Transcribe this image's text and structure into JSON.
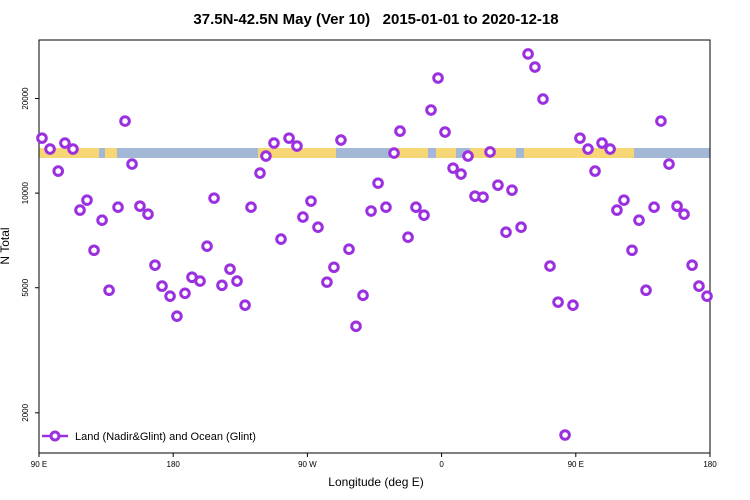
{
  "chart_data": {
    "type": "scatter",
    "title": "37.5N-42.5N May (Ver 10)   2015-01-01 to 2020-12-18",
    "x_label": "Longitude (deg E)",
    "y_label": "N Total",
    "log_y": true,
    "legend_position": "lower left",
    "xlim": [
      90,
      540
    ],
    "xticks": [
      {
        "value": 90,
        "label": "90 E"
      },
      {
        "value": 180,
        "label": "180"
      },
      {
        "value": 270,
        "label": "90 W"
      },
      {
        "value": 360,
        "label": "0"
      },
      {
        "value": 450,
        "label": "90 E"
      },
      {
        "value": 540,
        "label": "180"
      }
    ],
    "ylim": [
      1490,
      30700
    ],
    "yticks": [
      2000,
      5000,
      10000,
      20000
    ],
    "series": [
      {
        "name": "Land (Nadir&Glint) and Ocean (Glint)",
        "color": "#9b30e0",
        "x": [
          92,
          97.4,
          102.9,
          107.4,
          112.8,
          117.5,
          122.2,
          126.9,
          132.3,
          137,
          143,
          147.7,
          152.4,
          157.7,
          163.1,
          167.8,
          172.5,
          177.9,
          182.5,
          187.9,
          192.6,
          198,
          202.7,
          207.4,
          212.7,
          218.1,
          222.8,
          228.2,
          232.2,
          238.2,
          242.2,
          247.6,
          252.3,
          257.7,
          263,
          267,
          272.4,
          277.1,
          283.1,
          287.8,
          292.5,
          297.9,
          302.6,
          307.3,
          312.7,
          317.4,
          322.7,
          328.1,
          332.1,
          337.5,
          342.8,
          348.2,
          352.9,
          357.6,
          362.3,
          367.7,
          373,
          377.7,
          382.4,
          387.8,
          392.5,
          397.8,
          403.2,
          407.2,
          413.3,
          418,
          422.6,
          428,
          432.7,
          438.1,
          442.8,
          448.1,
          452.8,
          458.2,
          462.9,
          467.6,
          473,
          477.6,
          482.3,
          487.7,
          492.4,
          497.1,
          502.5,
          507.1,
          512.5,
          517.9,
          522.6,
          528,
          532.6,
          538
        ],
        "values": [
          14960,
          13810,
          11750,
          14430,
          13810,
          8830,
          9500,
          6580,
          8200,
          4910,
          9020,
          16950,
          12370,
          9090,
          8570,
          5900,
          5060,
          4700,
          4060,
          4800,
          5400,
          5250,
          6780,
          9640,
          5090,
          5730,
          5250,
          4400,
          9020,
          11580,
          13120,
          14430,
          7140,
          14960,
          14120,
          8390,
          9430,
          7790,
          5210,
          5810,
          14750,
          6630,
          3770,
          4730,
          8770,
          10760,
          9020,
          13410,
          15750,
          7240,
          9020,
          8510,
          18380,
          23240,
          15640,
          12010,
          11500,
          13120,
          9780,
          9710,
          13520,
          10600,
          7510,
          10220,
          7790,
          27720,
          25180,
          19920,
          5860,
          4500,
          1700,
          4400,
          14960,
          13810,
          11750,
          14430,
          13810,
          8830,
          9500,
          6580,
          8200,
          4910,
          9020,
          16950,
          12370,
          9090,
          8570,
          5900,
          5060,
          4700
        ]
      }
    ]
  }
}
